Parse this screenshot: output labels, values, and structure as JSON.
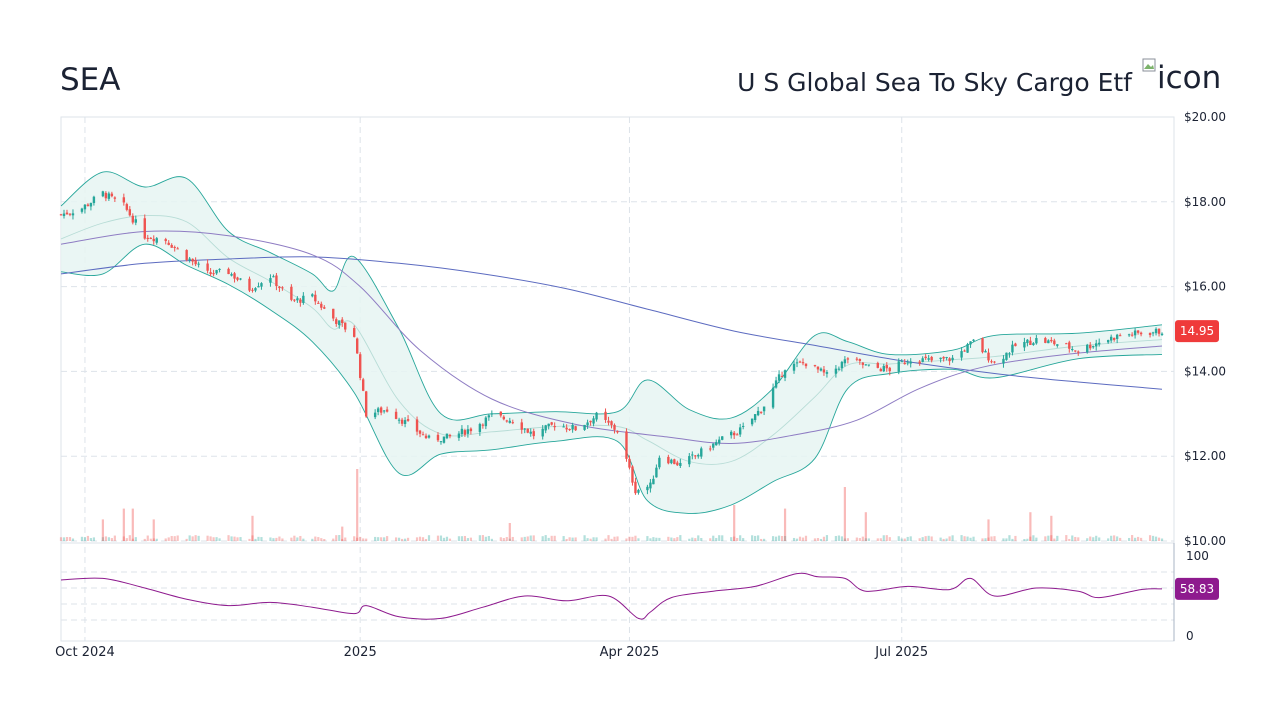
{
  "header": {
    "ticker": "SEA",
    "fund_name": "U S Global Sea To Sky Cargo Etf",
    "icon_alt": "icon",
    "icon_name": "broken-image-icon"
  },
  "colors": {
    "up": "#26a69a",
    "down": "#ef5350",
    "band_stroke": "#26a69a",
    "band_fill": "#e6f4f2",
    "band_mid": "#b7dcd6",
    "ma_long": "#5c6bc0",
    "ma_short": "#8e7cc3",
    "rsi": "#8e1a8e",
    "price_badge": "#ef3b3b",
    "rsi_badge": "#8e1a8e",
    "grid": "#dde3ea"
  },
  "chart_data": [
    {
      "type": "candlestick",
      "title": "",
      "x_range": [
        "2024-09-23",
        "2025-09-30"
      ],
      "ylim": [
        10,
        20
      ],
      "y_ticks": [
        "$20.00",
        "$18.00",
        "$16.00",
        "$14.00",
        "$12.00",
        "$10.00"
      ],
      "y_tick_values": [
        20,
        18,
        16,
        14,
        12,
        10
      ],
      "x_ticks": [
        {
          "date": "2024-10-01",
          "label": "Oct 2024"
        },
        {
          "date": "2025-01-01",
          "label": "2025"
        },
        {
          "date": "2025-04-01",
          "label": "Apr 2025"
        },
        {
          "date": "2025-07-01",
          "label": "Jul 2025"
        }
      ],
      "last_price_label": "14.95",
      "last_price": 14.95,
      "close_path": [
        [
          "2024-09-23",
          17.7
        ],
        [
          "2024-09-30",
          17.85
        ],
        [
          "2024-10-07",
          18.2
        ],
        [
          "2024-10-14",
          17.9
        ],
        [
          "2024-10-21",
          17.2
        ],
        [
          "2024-10-28",
          17.1
        ],
        [
          "2024-11-04",
          16.7
        ],
        [
          "2024-11-11",
          16.3
        ],
        [
          "2024-11-18",
          16.35
        ],
        [
          "2024-11-25",
          15.95
        ],
        [
          "2024-12-02",
          16.25
        ],
        [
          "2024-12-09",
          15.65
        ],
        [
          "2024-12-16",
          15.75
        ],
        [
          "2024-12-23",
          15.25
        ],
        [
          "2024-12-30",
          14.85
        ],
        [
          "2025-01-03",
          13.0
        ],
        [
          "2025-01-10",
          13.1
        ],
        [
          "2025-01-17",
          12.75
        ],
        [
          "2025-01-24",
          12.4
        ],
        [
          "2025-01-31",
          12.45
        ],
        [
          "2025-02-07",
          12.65
        ],
        [
          "2025-02-14",
          12.95
        ],
        [
          "2025-02-21",
          12.85
        ],
        [
          "2025-02-28",
          12.5
        ],
        [
          "2025-03-07",
          12.75
        ],
        [
          "2025-03-14",
          12.65
        ],
        [
          "2025-03-21",
          12.95
        ],
        [
          "2025-03-28",
          12.6
        ],
        [
          "2025-04-03",
          11.2
        ],
        [
          "2025-04-08",
          11.3
        ],
        [
          "2025-04-11",
          12.0
        ],
        [
          "2025-04-18",
          11.8
        ],
        [
          "2025-04-25",
          12.1
        ],
        [
          "2025-05-02",
          12.4
        ],
        [
          "2025-05-09",
          12.65
        ],
        [
          "2025-05-16",
          13.2
        ],
        [
          "2025-05-23",
          14.1
        ],
        [
          "2025-05-30",
          14.2
        ],
        [
          "2025-06-06",
          13.9
        ],
        [
          "2025-06-13",
          14.3
        ],
        [
          "2025-06-20",
          14.1
        ],
        [
          "2025-06-27",
          14.05
        ],
        [
          "2025-07-04",
          14.3
        ],
        [
          "2025-07-11",
          14.25
        ],
        [
          "2025-07-18",
          14.3
        ],
        [
          "2025-07-25",
          14.7
        ],
        [
          "2025-08-01",
          14.2
        ],
        [
          "2025-08-08",
          14.6
        ],
        [
          "2025-08-15",
          14.75
        ],
        [
          "2025-08-22",
          14.65
        ],
        [
          "2025-08-29",
          14.5
        ],
        [
          "2025-09-05",
          14.7
        ],
        [
          "2025-09-12",
          14.85
        ],
        [
          "2025-09-19",
          14.9
        ],
        [
          "2025-09-26",
          14.95
        ]
      ],
      "bollinger_upper": [
        [
          "2024-09-23",
          17.9
        ],
        [
          "2024-10-07",
          18.7
        ],
        [
          "2024-10-21",
          18.35
        ],
        [
          "2024-11-04",
          18.55
        ],
        [
          "2024-11-18",
          17.3
        ],
        [
          "2024-12-02",
          16.8
        ],
        [
          "2024-12-16",
          16.3
        ],
        [
          "2024-12-23",
          15.9
        ],
        [
          "2024-12-30",
          16.7
        ],
        [
          "2025-01-14",
          15.0
        ],
        [
          "2025-01-28",
          13.0
        ],
        [
          "2025-02-14",
          13.0
        ],
        [
          "2025-03-07",
          13.05
        ],
        [
          "2025-03-28",
          13.05
        ],
        [
          "2025-04-07",
          13.8
        ],
        [
          "2025-04-21",
          13.1
        ],
        [
          "2025-05-05",
          12.9
        ],
        [
          "2025-05-19",
          13.6
        ],
        [
          "2025-06-02",
          14.85
        ],
        [
          "2025-06-13",
          14.7
        ],
        [
          "2025-06-27",
          14.4
        ],
        [
          "2025-07-18",
          14.5
        ],
        [
          "2025-08-01",
          14.85
        ],
        [
          "2025-08-29",
          14.9
        ],
        [
          "2025-09-26",
          15.1
        ]
      ],
      "bollinger_lower": [
        [
          "2024-09-23",
          16.35
        ],
        [
          "2024-10-07",
          16.3
        ],
        [
          "2024-10-21",
          17.0
        ],
        [
          "2024-11-04",
          16.5
        ],
        [
          "2024-11-18",
          16.05
        ],
        [
          "2024-12-02",
          15.45
        ],
        [
          "2024-12-16",
          14.7
        ],
        [
          "2024-12-30",
          13.5
        ],
        [
          "2025-01-14",
          11.6
        ],
        [
          "2025-01-28",
          12.05
        ],
        [
          "2025-02-14",
          12.15
        ],
        [
          "2025-03-07",
          12.35
        ],
        [
          "2025-03-28",
          12.35
        ],
        [
          "2025-04-07",
          10.95
        ],
        [
          "2025-04-21",
          10.65
        ],
        [
          "2025-05-05",
          10.85
        ],
        [
          "2025-05-19",
          11.4
        ],
        [
          "2025-06-02",
          11.95
        ],
        [
          "2025-06-13",
          13.6
        ],
        [
          "2025-06-27",
          13.95
        ],
        [
          "2025-07-18",
          14.05
        ],
        [
          "2025-08-01",
          13.85
        ],
        [
          "2025-08-29",
          14.3
        ],
        [
          "2025-09-26",
          14.4
        ]
      ],
      "ma_short": [
        [
          "2024-09-23",
          17.0
        ],
        [
          "2024-10-21",
          17.3
        ],
        [
          "2024-11-18",
          17.2
        ],
        [
          "2024-12-16",
          16.75
        ],
        [
          "2025-01-01",
          16.0
        ],
        [
          "2025-01-21",
          14.5
        ],
        [
          "2025-02-14",
          13.35
        ],
        [
          "2025-03-14",
          12.75
        ],
        [
          "2025-04-14",
          12.45
        ],
        [
          "2025-05-05",
          12.3
        ],
        [
          "2025-05-26",
          12.5
        ],
        [
          "2025-06-16",
          12.85
        ],
        [
          "2025-07-07",
          13.6
        ],
        [
          "2025-07-28",
          14.1
        ],
        [
          "2025-08-25",
          14.4
        ],
        [
          "2025-09-26",
          14.6
        ]
      ],
      "ma_long": [
        [
          "2024-09-23",
          16.3
        ],
        [
          "2024-10-21",
          16.55
        ],
        [
          "2024-11-18",
          16.65
        ],
        [
          "2024-12-16",
          16.7
        ],
        [
          "2025-01-14",
          16.55
        ],
        [
          "2025-02-11",
          16.3
        ],
        [
          "2025-03-11",
          15.95
        ],
        [
          "2025-04-08",
          15.45
        ],
        [
          "2025-05-06",
          14.95
        ],
        [
          "2025-06-03",
          14.6
        ],
        [
          "2025-07-01",
          14.25
        ],
        [
          "2025-08-01",
          13.95
        ],
        [
          "2025-08-29",
          13.75
        ],
        [
          "2025-09-26",
          13.58
        ]
      ],
      "volume_spikes": [
        {
          "date": "2024-10-07",
          "relative": 0.3
        },
        {
          "date": "2024-10-14",
          "relative": 0.45
        },
        {
          "date": "2024-10-17",
          "relative": 0.45
        },
        {
          "date": "2024-10-24",
          "relative": 0.3
        },
        {
          "date": "2024-11-26",
          "relative": 0.35
        },
        {
          "date": "2024-12-26",
          "relative": 0.2
        },
        {
          "date": "2024-12-31",
          "relative": 1.0
        },
        {
          "date": "2025-02-20",
          "relative": 0.25
        },
        {
          "date": "2025-05-06",
          "relative": 0.5
        },
        {
          "date": "2025-05-23",
          "relative": 0.45
        },
        {
          "date": "2025-06-12",
          "relative": 0.75
        },
        {
          "date": "2025-06-19",
          "relative": 0.4
        },
        {
          "date": "2025-07-30",
          "relative": 0.3
        },
        {
          "date": "2025-08-13",
          "relative": 0.4
        },
        {
          "date": "2025-08-20",
          "relative": 0.35
        }
      ]
    },
    {
      "type": "line",
      "title": "",
      "ylim": [
        0,
        100
      ],
      "y_ticks": [
        "100",
        "0"
      ],
      "y_tick_values": [
        100,
        0
      ],
      "last_value_label": "58.83",
      "last_value": 58.83,
      "series": [
        {
          "values": [
            [
              "2024-09-23",
              70
            ],
            [
              "2024-10-07",
              72
            ],
            [
              "2024-10-21",
              60
            ],
            [
              "2024-11-04",
              46
            ],
            [
              "2024-11-18",
              38
            ],
            [
              "2024-12-02",
              42
            ],
            [
              "2024-12-16",
              36
            ],
            [
              "2024-12-30",
              28
            ],
            [
              "2025-01-03",
              38
            ],
            [
              "2025-01-14",
              24
            ],
            [
              "2025-01-28",
              22
            ],
            [
              "2025-02-11",
              36
            ],
            [
              "2025-02-25",
              50
            ],
            [
              "2025-03-11",
              44
            ],
            [
              "2025-03-25",
              50
            ],
            [
              "2025-04-04",
              22
            ],
            [
              "2025-04-08",
              30
            ],
            [
              "2025-04-15",
              48
            ],
            [
              "2025-04-29",
              56
            ],
            [
              "2025-05-13",
              62
            ],
            [
              "2025-05-27",
              78
            ],
            [
              "2025-06-03",
              74
            ],
            [
              "2025-06-12",
              72
            ],
            [
              "2025-06-19",
              56
            ],
            [
              "2025-07-03",
              62
            ],
            [
              "2025-07-17",
              58
            ],
            [
              "2025-07-24",
              72
            ],
            [
              "2025-08-01",
              50
            ],
            [
              "2025-08-15",
              60
            ],
            [
              "2025-08-29",
              56
            ],
            [
              "2025-09-05",
              48
            ],
            [
              "2025-09-19",
              58
            ],
            [
              "2025-09-26",
              58.83
            ]
          ]
        }
      ]
    }
  ]
}
